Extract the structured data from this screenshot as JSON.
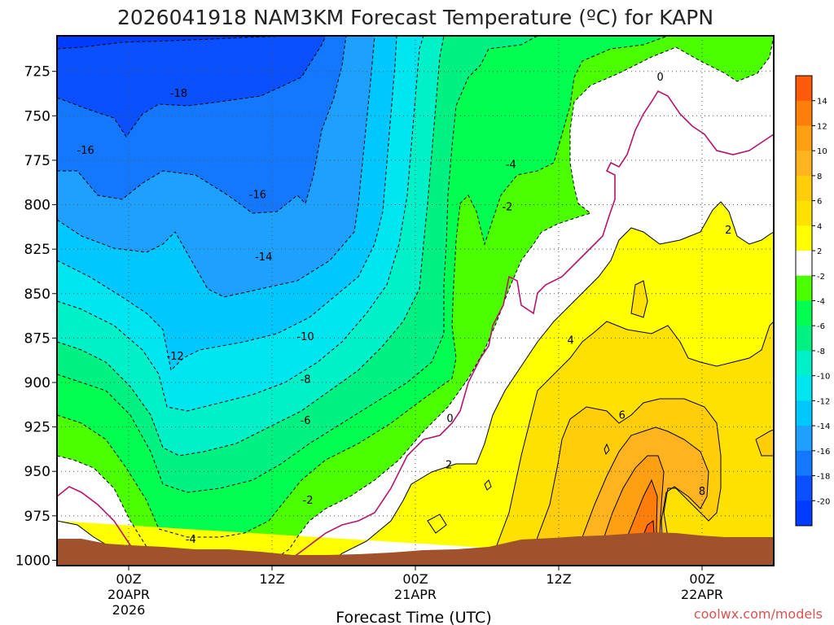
{
  "chart_data": {
    "type": "contour",
    "title": "2026041918 NAM3KM Forecast Temperature (ºC) for KAPN",
    "xlabel": "Forecast Time (UTC)",
    "ylabel": "",
    "credit": "coolwx.com/models",
    "y_axis": {
      "ticks": [
        "725",
        "750",
        "775",
        "800",
        "825",
        "850",
        "875",
        "900",
        "925",
        "950",
        "975",
        "1000"
      ],
      "range": [
        705,
        1003
      ],
      "inverted": true
    },
    "x_axis": {
      "range_hours": [
        -6,
        54
      ],
      "ticks": [
        {
          "hour": 0,
          "lines": [
            "00Z",
            "20APR",
            "2026"
          ]
        },
        {
          "hour": 12,
          "lines": [
            "12Z"
          ]
        },
        {
          "hour": 24,
          "lines": [
            "00Z",
            "21APR"
          ]
        },
        {
          "hour": 36,
          "lines": [
            "12Z"
          ]
        },
        {
          "hour": 48,
          "lines": [
            "00Z",
            "22APR"
          ]
        }
      ]
    },
    "grid": true,
    "colorbar": {
      "labels": [
        "14",
        "12",
        "10",
        "8",
        "6",
        "4",
        "2",
        "-2",
        "-4",
        "-6",
        "-8",
        "-10",
        "-12",
        "-14",
        "-16",
        "-18",
        "-20"
      ],
      "colors": [
        "#ff5a0a",
        "#ff7d0a",
        "#ff9f12",
        "#ffb31e",
        "#ffcd0a",
        "#ffe100",
        "#ffff00",
        "#ffffff",
        "#4cff00",
        "#00ff50",
        "#00f082",
        "#00f0c8",
        "#00e6f0",
        "#00c8ff",
        "#1ea0ff",
        "#1478ff",
        "#0a50ff",
        "#003cff"
      ]
    },
    "contour_labels": [
      {
        "text": "-18",
        "hour": 4.2,
        "p": 737
      },
      {
        "text": "-16",
        "hour": -3.6,
        "p": 769
      },
      {
        "text": "-16",
        "hour": 10.8,
        "p": 794
      },
      {
        "text": "-14",
        "hour": 11.3,
        "p": 829
      },
      {
        "text": "-12",
        "hour": 3.9,
        "p": 885
      },
      {
        "text": "-10",
        "hour": 14.8,
        "p": 874
      },
      {
        "text": "-8",
        "hour": 14.8,
        "p": 898
      },
      {
        "text": "-6",
        "hour": 14.8,
        "p": 921
      },
      {
        "text": "-4",
        "hour": 5.2,
        "p": 988
      },
      {
        "text": "-2",
        "hour": 15.0,
        "p": 966
      },
      {
        "text": "-4",
        "hour": 32.0,
        "p": 777
      },
      {
        "text": "-2",
        "hour": 31.7,
        "p": 801
      },
      {
        "text": "0",
        "hour": 44.5,
        "p": 728
      },
      {
        "text": "0",
        "hour": 26.9,
        "p": 920
      },
      {
        "text": "2",
        "hour": 26.8,
        "p": 946
      },
      {
        "text": "2",
        "hour": 50.2,
        "p": 814
      },
      {
        "text": "4",
        "hour": 37.0,
        "p": 876
      },
      {
        "text": "6",
        "hour": 41.3,
        "p": 918
      },
      {
        "text": "8",
        "hour": 48.0,
        "p": 961
      }
    ],
    "freezing_line_color": "#b4146e",
    "ground_color": "#a0522d"
  }
}
